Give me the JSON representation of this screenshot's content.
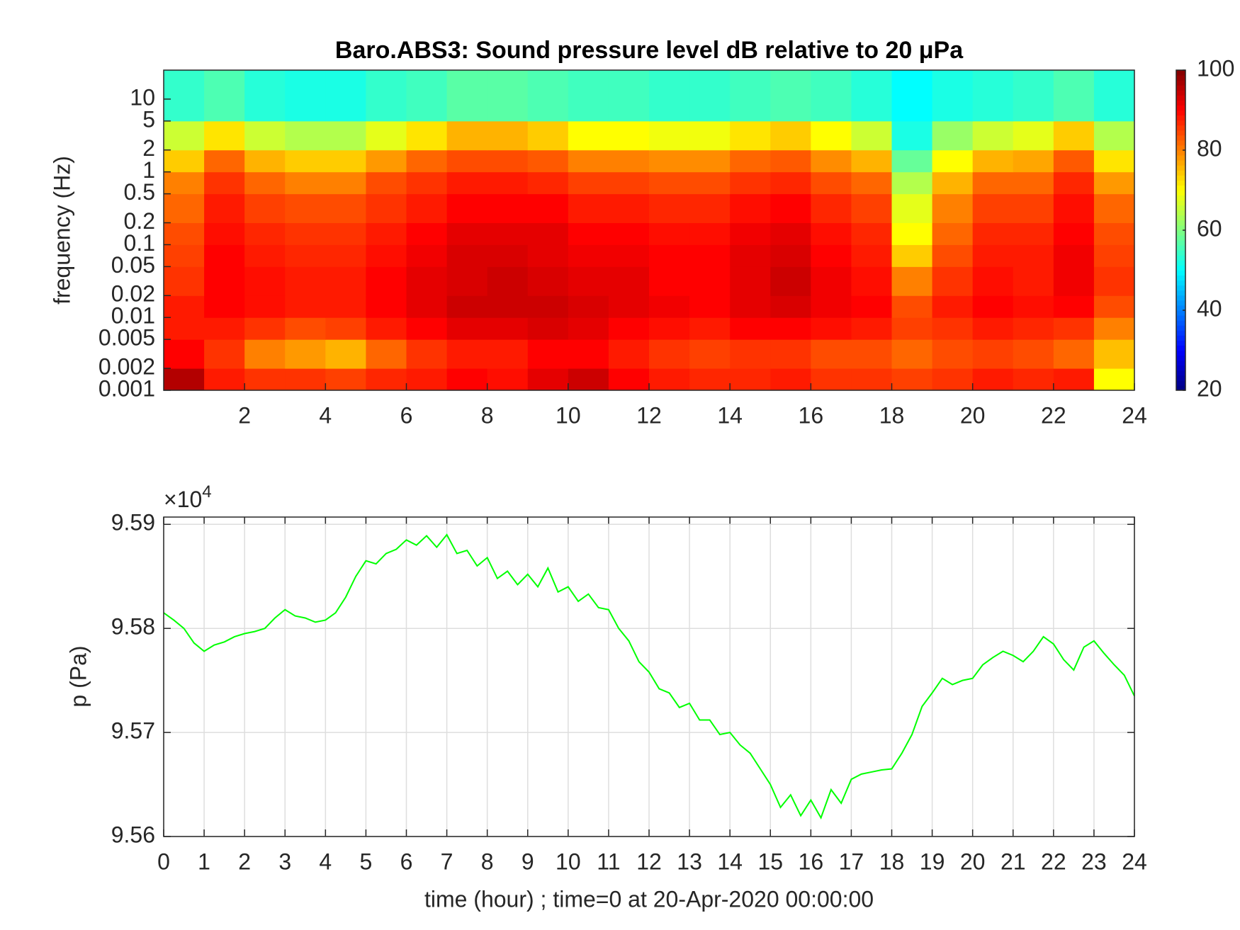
{
  "chart_data": [
    {
      "type": "heatmap",
      "title": "Baro.ABS3: Sound pressure level dB relative to 20 μPa",
      "ylabel": "frequency (Hz)",
      "log_y": true,
      "colormap": "jet",
      "xlim": [
        0,
        24
      ],
      "xticks": [
        2,
        4,
        6,
        8,
        10,
        12,
        14,
        16,
        18,
        20,
        22,
        24
      ],
      "ylim": [
        0.001,
        25
      ],
      "yticks": [
        0.001,
        0.002,
        0.005,
        0.01,
        0.02,
        0.05,
        0.1,
        0.2,
        0.5,
        1,
        2,
        5,
        10
      ],
      "clim": [
        20,
        100
      ],
      "cticks": [
        20,
        40,
        60,
        80,
        100
      ],
      "x_bins": [
        0,
        1,
        2,
        3,
        4,
        5,
        6,
        7,
        8,
        9,
        10,
        11,
        12,
        13,
        14,
        15,
        16,
        17,
        18,
        19,
        20,
        21,
        22,
        23,
        24
      ],
      "y_bins": [
        0.001,
        0.002,
        0.005,
        0.01,
        0.02,
        0.05,
        0.1,
        0.2,
        0.5,
        1,
        2,
        5,
        25
      ],
      "values": [
        [
          96,
          88,
          86,
          86,
          85,
          87,
          88,
          90,
          89,
          92,
          94,
          90,
          88,
          87,
          87,
          88,
          86,
          86,
          85,
          86,
          88,
          87,
          88,
          70
        ],
        [
          90,
          86,
          80,
          78,
          76,
          82,
          86,
          88,
          88,
          90,
          90,
          88,
          86,
          85,
          86,
          86,
          84,
          84,
          82,
          84,
          85,
          84,
          82,
          75
        ],
        [
          88,
          88,
          86,
          84,
          85,
          88,
          90,
          92,
          92,
          93,
          92,
          90,
          89,
          88,
          90,
          90,
          89,
          88,
          85,
          86,
          88,
          87,
          86,
          80
        ],
        [
          88,
          90,
          89,
          88,
          88,
          90,
          92,
          94,
          94,
          94,
          93,
          92,
          91,
          90,
          92,
          93,
          91,
          90,
          84,
          88,
          90,
          89,
          90,
          84
        ],
        [
          86,
          90,
          89,
          88,
          88,
          90,
          92,
          93,
          94,
          93,
          92,
          92,
          90,
          90,
          92,
          94,
          91,
          89,
          80,
          86,
          89,
          88,
          91,
          86
        ],
        [
          85,
          90,
          88,
          87,
          87,
          89,
          91,
          93,
          93,
          92,
          91,
          91,
          90,
          90,
          92,
          93,
          90,
          88,
          74,
          84,
          88,
          88,
          91,
          85
        ],
        [
          84,
          89,
          87,
          86,
          86,
          88,
          90,
          92,
          92,
          92,
          90,
          90,
          89,
          89,
          91,
          92,
          89,
          87,
          70,
          82,
          87,
          87,
          90,
          84
        ],
        [
          82,
          88,
          85,
          84,
          84,
          86,
          88,
          90,
          90,
          90,
          88,
          88,
          87,
          87,
          89,
          90,
          87,
          85,
          68,
          80,
          85,
          85,
          89,
          82
        ],
        [
          80,
          86,
          82,
          80,
          80,
          84,
          86,
          88,
          88,
          87,
          85,
          85,
          84,
          84,
          86,
          87,
          84,
          82,
          64,
          76,
          82,
          82,
          87,
          78
        ],
        [
          74,
          82,
          76,
          74,
          74,
          78,
          82,
          84,
          84,
          83,
          80,
          80,
          79,
          79,
          82,
          83,
          79,
          76,
          58,
          70,
          76,
          77,
          83,
          72
        ],
        [
          66,
          72,
          66,
          64,
          64,
          68,
          72,
          76,
          76,
          74,
          70,
          70,
          69,
          69,
          72,
          74,
          70,
          66,
          52,
          62,
          66,
          68,
          74,
          64
        ],
        [
          54,
          56,
          53,
          52,
          52,
          54,
          55,
          57,
          57,
          56,
          55,
          55,
          54,
          54,
          55,
          56,
          55,
          53,
          50,
          52,
          53,
          54,
          56,
          53
        ]
      ]
    },
    {
      "type": "line",
      "xlabel": "time (hour) ; time=0 at 20-Apr-2020 00:00:00",
      "ylabel": "p (Pa)",
      "y_multiplier": {
        "base": "×10",
        "exponent": "4"
      },
      "color": "#00ff00",
      "grid": true,
      "xlim": [
        0,
        24
      ],
      "xticks": [
        0,
        1,
        2,
        3,
        4,
        5,
        6,
        7,
        8,
        9,
        10,
        11,
        12,
        13,
        14,
        15,
        16,
        17,
        18,
        19,
        20,
        21,
        22,
        23,
        24
      ],
      "ylim": [
        95600,
        95907
      ],
      "yticks": [
        {
          "value": 95600,
          "label": "9.56"
        },
        {
          "value": 95700,
          "label": "9.57"
        },
        {
          "value": 95800,
          "label": "9.58"
        },
        {
          "value": 95900,
          "label": "9.59"
        }
      ],
      "x": [
        0,
        0.25,
        0.5,
        0.75,
        1,
        1.25,
        1.5,
        1.75,
        2,
        2.25,
        2.5,
        2.75,
        3,
        3.25,
        3.5,
        3.75,
        4,
        4.25,
        4.5,
        4.75,
        5,
        5.25,
        5.5,
        5.75,
        6,
        6.25,
        6.5,
        6.75,
        7,
        7.25,
        7.5,
        7.75,
        8,
        8.25,
        8.5,
        8.75,
        9,
        9.25,
        9.5,
        9.75,
        10,
        10.25,
        10.5,
        10.75,
        11,
        11.25,
        11.5,
        11.75,
        12,
        12.25,
        12.5,
        12.75,
        13,
        13.25,
        13.5,
        13.75,
        14,
        14.25,
        14.5,
        14.75,
        15,
        15.25,
        15.5,
        15.75,
        16,
        16.25,
        16.5,
        16.75,
        17,
        17.25,
        17.5,
        17.75,
        18,
        18.25,
        18.5,
        18.75,
        19,
        19.25,
        19.5,
        19.75,
        20,
        20.25,
        20.5,
        20.75,
        21,
        21.25,
        21.5,
        21.75,
        22,
        22.25,
        22.5,
        22.75,
        23,
        23.25,
        23.5,
        23.75,
        24
      ],
      "values": [
        95815,
        95808,
        95800,
        95786,
        95778,
        95784,
        95787,
        95792,
        95795,
        95797,
        95800,
        95810,
        95818,
        95812,
        95810,
        95806,
        95808,
        95815,
        95830,
        95850,
        95865,
        95862,
        95872,
        95876,
        95885,
        95880,
        95889,
        95878,
        95890,
        95872,
        95875,
        95860,
        95868,
        95848,
        95855,
        95842,
        95852,
        95840,
        95858,
        95835,
        95840,
        95826,
        95833,
        95820,
        95818,
        95800,
        95788,
        95768,
        95758,
        95742,
        95738,
        95724,
        95728,
        95712,
        95712,
        95698,
        95700,
        95688,
        95680,
        95665,
        95650,
        95628,
        95640,
        95620,
        95635,
        95618,
        95645,
        95632,
        95655,
        95660,
        95662,
        95664,
        95665,
        95680,
        95698,
        95725,
        95738,
        95752,
        95746,
        95750,
        95752,
        95765,
        95772,
        95778,
        95774,
        95768,
        95778,
        95792,
        95785,
        95770,
        95760,
        95782,
        95788,
        95776,
        95765,
        95755,
        95735
      ]
    }
  ]
}
